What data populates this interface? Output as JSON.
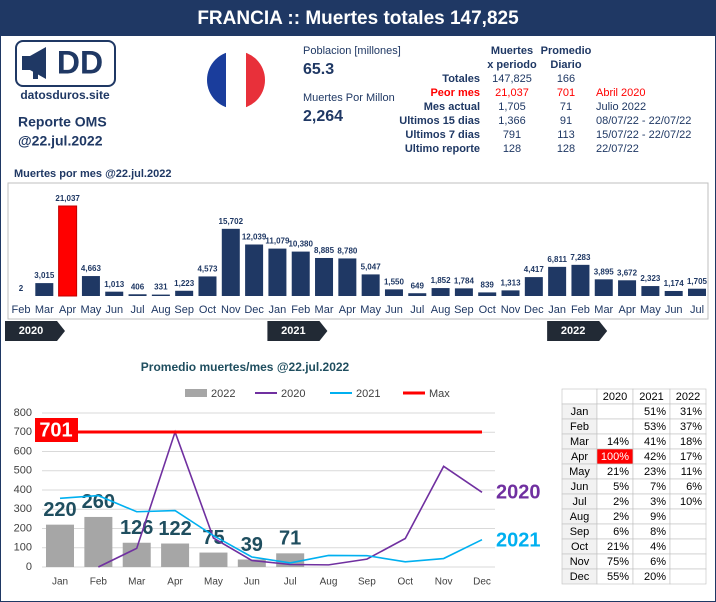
{
  "header": {
    "title": "FRANCIA :: Muertes totales 147,825"
  },
  "logo": {
    "text": "DD",
    "site": "datosduros.site",
    "report": "Reporte OMS",
    "date": "@22.jul.2022"
  },
  "population": {
    "label": "Poblacion [millones]",
    "value": "65.3"
  },
  "per_million": {
    "label": "Muertes Por Millon",
    "value": "2,264"
  },
  "stats": {
    "headers": [
      [
        "Muertes",
        "x periodo"
      ],
      [
        "Promedio",
        "Diario"
      ]
    ],
    "rows": [
      [
        "Totales",
        "147,825",
        "166",
        null
      ],
      [
        "Peor mes",
        "21,037",
        "701",
        "Abril 2020"
      ],
      [
        "Mes actual",
        "1,705",
        "71",
        "Julio 2022"
      ],
      [
        "Ultimos 15 dias",
        "1,366",
        "91",
        "08/07/22 - 22/07/22"
      ],
      [
        "Ultimos 7 dias",
        "791",
        "113",
        "15/07/22 - 22/07/22"
      ],
      [
        "Ultimo reporte",
        "128",
        "128",
        "22/07/22"
      ]
    ]
  },
  "chart_data": [
    {
      "type": "bar",
      "title": "Muertes por mes @22.jul.2022",
      "categories": [
        "Feb",
        "Mar",
        "Apr",
        "May",
        "Jun",
        "Jul",
        "Aug",
        "Sep",
        "Oct",
        "Nov",
        "Dec",
        "Jan",
        "Feb",
        "Mar",
        "Apr",
        "May",
        "Jun",
        "Jul",
        "Aug",
        "Sep",
        "Oct",
        "Nov",
        "Dec",
        "Jan",
        "Feb",
        "Mar",
        "Apr",
        "May",
        "Jun",
        "Jul"
      ],
      "values": [
        2,
        3015,
        21037,
        4663,
        1013,
        406,
        331,
        1223,
        4573,
        15702,
        12039,
        11079,
        10380,
        8885,
        8780,
        5047,
        1550,
        649,
        1852,
        1784,
        839,
        1313,
        4417,
        6811,
        7283,
        3895,
        3672,
        2323,
        1174,
        1705
      ],
      "value_labels": [
        "2",
        "3,015",
        "21,037",
        "4,663",
        "1,013",
        "406",
        "331",
        "1,223",
        "4,573",
        "15,702",
        "12,039",
        "11,079",
        "10,380",
        "8,885",
        "8,780",
        "5,047",
        "1,550",
        "649",
        "1,852",
        "1,784",
        "839",
        "1,313",
        "4,417",
        "6,811",
        "7,283",
        "3,895",
        "3,672",
        "2,323",
        "1,174",
        "1,705"
      ],
      "color": "#1f3864",
      "highlight_color": "#ff0000",
      "years": [
        "2020",
        "2021",
        "2022"
      ]
    },
    {
      "type": "line",
      "title": "Promedio muertes/mes @22.jul.2022",
      "categories": [
        "Jan",
        "Feb",
        "Mar",
        "Apr",
        "May",
        "Jun",
        "Jul",
        "Aug",
        "Sep",
        "Oct",
        "Nov",
        "Dec"
      ],
      "series": [
        {
          "name": "2022",
          "kind": "bar",
          "color": "#a6a6a6",
          "label_color": "#1f4e5f",
          "values": [
            220,
            260,
            126,
            122,
            75,
            39,
            71,
            null,
            null,
            null,
            null,
            null
          ]
        },
        {
          "name": "2020",
          "color": "#7030a0",
          "values": [
            null,
            0,
            97,
            701,
            150,
            34,
            13,
            11,
            41,
            148,
            523,
            388
          ]
        },
        {
          "name": "2021",
          "color": "#00b0f0",
          "values": [
            357,
            371,
            287,
            293,
            163,
            52,
            21,
            60,
            59,
            27,
            44,
            142
          ]
        },
        {
          "name": "Max",
          "color": "#ff0000",
          "values": [
            701,
            701,
            701,
            701,
            701,
            701,
            701,
            701,
            701,
            701,
            701,
            701
          ]
        }
      ],
      "ylim": [
        0,
        800
      ],
      "yticks": [
        0,
        100,
        200,
        300,
        400,
        500,
        600,
        700,
        800
      ],
      "grid": true,
      "legend": "top"
    }
  ],
  "table": {
    "columns": [
      "2020",
      "2021",
      "2022"
    ],
    "rows": [
      {
        "month": "Jan",
        "cells": [
          null,
          "51%",
          "31%"
        ]
      },
      {
        "month": "Feb",
        "cells": [
          null,
          "53%",
          "37%"
        ]
      },
      {
        "month": "Mar",
        "cells": [
          "14%",
          "41%",
          "18%"
        ]
      },
      {
        "month": "Apr",
        "cells": [
          "100%",
          "42%",
          "17%"
        ]
      },
      {
        "month": "May",
        "cells": [
          "21%",
          "23%",
          "11%"
        ]
      },
      {
        "month": "Jun",
        "cells": [
          "5%",
          "7%",
          "6%"
        ]
      },
      {
        "month": "Jul",
        "cells": [
          "2%",
          "3%",
          "10%"
        ]
      },
      {
        "month": "Aug",
        "cells": [
          "2%",
          "9%",
          null
        ]
      },
      {
        "month": "Sep",
        "cells": [
          "6%",
          "8%",
          null
        ]
      },
      {
        "month": "Oct",
        "cells": [
          "21%",
          "4%",
          null
        ]
      },
      {
        "month": "Nov",
        "cells": [
          "75%",
          "6%",
          null
        ]
      },
      {
        "month": "Dec",
        "cells": [
          "55%",
          "20%",
          null
        ]
      }
    ]
  }
}
